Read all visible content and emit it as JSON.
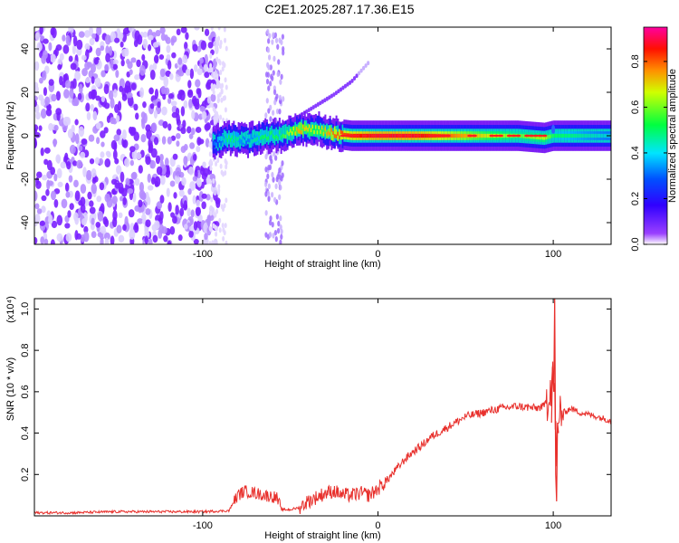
{
  "page_title": "C2E1.2025.287.17.36.E15",
  "chart_data": [
    {
      "type": "heatmap",
      "title": "C2E1.2025.287.17.36.E15",
      "xlabel": "Height of straight line (km)",
      "ylabel": "Frequency (Hz)",
      "xlim": [
        -196,
        133
      ],
      "ylim": [
        -50,
        50
      ],
      "x_ticks": [
        -100,
        0,
        100
      ],
      "x_tick_labels": [
        "-100",
        "0",
        "100"
      ],
      "y_ticks": [
        -40,
        -20,
        0,
        20,
        40
      ],
      "y_tick_labels": [
        "-40",
        "-20",
        "0",
        "20",
        "40"
      ],
      "colorbar": {
        "label": "Normalized spectral amplitude",
        "range": [
          0,
          0.95
        ],
        "ticks": [
          0.0,
          0.2,
          0.4,
          0.6,
          0.8
        ],
        "tick_labels": [
          "0.0",
          "0.2",
          "0.4",
          "0.6",
          "0.8"
        ],
        "colors": [
          "#ffffff",
          "#7a00ff",
          "#0000ff",
          "#00e5ff",
          "#00ff00",
          "#ffff00",
          "#ff8000",
          "#ff0000",
          "#ff00aa"
        ]
      },
      "features": [
        {
          "name": "noise",
          "x_range": [
            -196,
            -91
          ],
          "y_range": [
            -50,
            50
          ],
          "amplitude": 0.08
        },
        {
          "name": "vertical streak",
          "x_range": [
            -64,
            -54
          ],
          "y_range": [
            -50,
            50
          ],
          "amplitude": 0.05
        },
        {
          "name": "carrier",
          "x": [
            -94,
            -85,
            -75,
            -65,
            -55,
            -45,
            -35,
            -25,
            -15,
            0,
            20,
            40,
            60,
            80,
            95,
            100,
            133
          ],
          "y": [
            -3,
            -1,
            -2,
            0,
            0,
            3,
            3,
            1,
            0,
            0,
            0,
            0,
            0,
            0,
            -1,
            0,
            0
          ],
          "amplitude": [
            0.3,
            0.5,
            0.4,
            0.5,
            0.5,
            0.7,
            0.6,
            0.75,
            0.8,
            0.85,
            0.85,
            0.75,
            0.65,
            0.55,
            0.6,
            0.5,
            0.4
          ]
        },
        {
          "name": "rising trace",
          "x": [
            -55,
            -45,
            -35,
            -25,
            -15,
            -5
          ],
          "y": [
            5,
            9,
            14,
            19,
            25,
            34
          ],
          "amplitude": 0.05
        }
      ]
    },
    {
      "type": "line",
      "xlabel": "Height of straight line (km)",
      "ylabel": "SNR (10 * v/v)",
      "y_multiplier": "(x10⁴)",
      "xlim": [
        -196,
        133
      ],
      "ylim": [
        0,
        1.05
      ],
      "x_ticks": [
        -100,
        0,
        100
      ],
      "x_tick_labels": [
        "-100",
        "0",
        "100"
      ],
      "y_ticks": [
        0.2,
        0.4,
        0.6,
        0.8,
        1.0
      ],
      "y_tick_labels": [
        "0.2",
        "0.4",
        "0.6",
        "0.8",
        "1.0"
      ],
      "color": "#e8302c",
      "series": [
        {
          "x": [
            -196,
            -175,
            -150,
            -125,
            -100,
            -85,
            -80,
            -76,
            -70,
            -65,
            -58,
            -55,
            -50,
            -45,
            -40,
            -35,
            -30,
            -25,
            -20,
            -15,
            -10,
            -5,
            0,
            5,
            10,
            15,
            20,
            25,
            30,
            40,
            50,
            60,
            70,
            80,
            90,
            95,
            98,
            100,
            102,
            104,
            106,
            110,
            115,
            120,
            125,
            133
          ],
          "y": [
            0.015,
            0.015,
            0.02,
            0.02,
            0.02,
            0.025,
            0.1,
            0.12,
            0.11,
            0.1,
            0.09,
            0.03,
            0.03,
            0.04,
            0.07,
            0.09,
            0.11,
            0.12,
            0.1,
            0.1,
            0.11,
            0.1,
            0.13,
            0.17,
            0.22,
            0.27,
            0.31,
            0.34,
            0.38,
            0.43,
            0.48,
            0.5,
            0.52,
            0.53,
            0.52,
            0.53,
            0.62,
            0.7,
            0.3,
            0.52,
            0.5,
            0.52,
            0.5,
            0.49,
            0.48,
            0.46
          ]
        }
      ]
    }
  ]
}
